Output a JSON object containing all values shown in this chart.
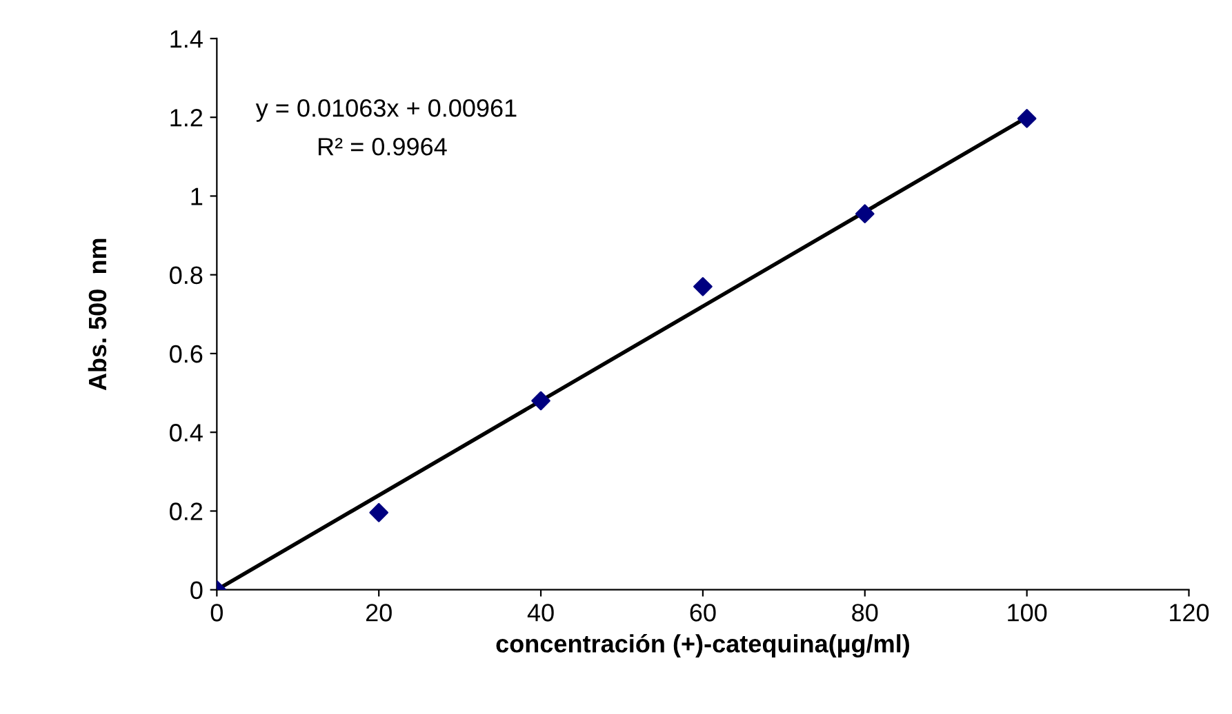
{
  "chart_data": {
    "type": "scatter",
    "xlabel": "concentración (+)-catequina(µg/ml)",
    "ylabel": "Abs. 500  nm",
    "x": [
      0,
      20,
      40,
      60,
      80,
      100
    ],
    "series": [
      {
        "color": "#000080",
        "marker": "diamond",
        "values": [
          0,
          0.196,
          0.48,
          0.77,
          0.955,
          1.197
        ]
      },
      {
        "type": "line",
        "color": "#000000",
        "marker": "none",
        "x": [
          0,
          100
        ],
        "values": [
          0.0,
          1.2
        ]
      }
    ],
    "annotations": [
      "y = 0.01063x + 0.00961",
      "R² = 0.9964"
    ],
    "xlim": [
      0,
      120
    ],
    "xticks": [
      0,
      20,
      40,
      60,
      80,
      100,
      120
    ],
    "ylim": [
      0,
      1.4
    ],
    "yticks": [
      0,
      0.2,
      0.4,
      0.6,
      0.8,
      1,
      1.2,
      1.4
    ],
    "grid": false,
    "legend": false
  }
}
